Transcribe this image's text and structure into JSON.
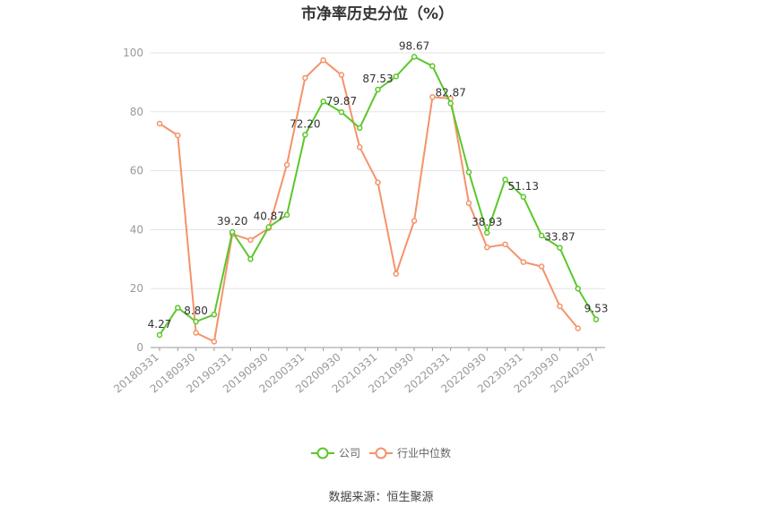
{
  "chart_data": {
    "type": "line",
    "title": "市净率历史分位（%）",
    "xlabel": "",
    "ylabel": "",
    "ylim": [
      0,
      100
    ],
    "yticks": [
      0,
      20,
      40,
      60,
      80,
      100
    ],
    "x": [
      "20180331",
      "20180630",
      "20180930",
      "20181231",
      "20190331",
      "20190630",
      "20190930",
      "20191231",
      "20200331",
      "20200630",
      "20200930",
      "20201231",
      "20210331",
      "20210630",
      "20210930",
      "20211231",
      "20220331",
      "20220630",
      "20220930",
      "20221231",
      "20230331",
      "20230630",
      "20230930",
      "20231231",
      "20240307"
    ],
    "x_tick_labels": [
      "20180331",
      "20180930",
      "20190331",
      "20190930",
      "20200331",
      "20200930",
      "20210331",
      "20210930",
      "20220331",
      "20220930",
      "20230331",
      "20230930",
      "20240307"
    ],
    "series": [
      {
        "name": "公司",
        "color": "#5cc72a",
        "values": [
          4.27,
          13.5,
          8.8,
          11.2,
          39.2,
          30.0,
          40.87,
          45.0,
          72.2,
          83.5,
          79.87,
          74.5,
          87.53,
          92.0,
          98.67,
          95.5,
          82.87,
          59.5,
          38.93,
          57.0,
          51.13,
          38.0,
          33.87,
          20.0,
          9.53
        ],
        "labels": {
          "0": "4.27",
          "2": "8.80",
          "4": "39.20",
          "6": "40.87",
          "8": "72.20",
          "10": "79.87",
          "12": "87.53",
          "14": "98.67",
          "16": "82.87",
          "18": "38.93",
          "20": "51.13",
          "22": "33.87",
          "24": "9.53"
        }
      },
      {
        "name": "行业中位数",
        "color": "#f4936a",
        "values": [
          76.0,
          72.0,
          5.0,
          2.0,
          38.5,
          36.5,
          40.5,
          62.0,
          91.5,
          97.5,
          92.5,
          68.0,
          56.0,
          25.0,
          43.0,
          85.0,
          84.5,
          49.0,
          34.0,
          35.0,
          29.0,
          27.5,
          14.0,
          6.5,
          null
        ],
        "labels": {}
      }
    ],
    "legend_position": "bottom",
    "grid": true
  },
  "footer": {
    "source": "数据来源：恒生聚源"
  }
}
